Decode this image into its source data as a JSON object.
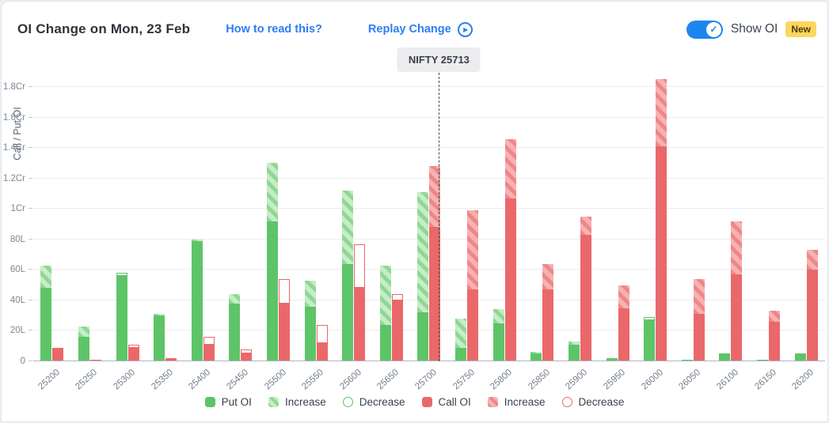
{
  "header": {
    "title": "OI Change on Mon, 23 Feb",
    "how_to_read": "How to read this?",
    "replay_label": "Replay Change",
    "show_oi_label": "Show OI",
    "new_badge": "New",
    "show_oi_toggle_on": true
  },
  "colors": {
    "put_solid": "#5ec468",
    "put_light": "#c6ecc8",
    "call_solid": "#ea686a",
    "call_light": "#f6b2b3",
    "link_blue": "#2d7df6",
    "toggle_blue": "#1d86ee",
    "badge_yellow": "#fbd762"
  },
  "chart_data": {
    "type": "bar",
    "title": "OI Change on Mon, 23 Feb",
    "ylabel": "Call / Put OI",
    "xlabel": "",
    "units": "values in lakhs (L); 1Cr = 100L",
    "grid": true,
    "ymax_lakh": 188,
    "ytick_values": [
      0,
      20,
      40,
      60,
      80,
      100,
      120,
      140,
      160,
      180
    ],
    "ytick_labels": [
      "0",
      "20L",
      "40L",
      "60L",
      "80L",
      "1Cr",
      "1.2Cr",
      "1.4Cr",
      "1.6Cr",
      "1.8Cr"
    ],
    "categories": [
      25200,
      25250,
      25300,
      25350,
      25400,
      25450,
      25500,
      25550,
      25600,
      25650,
      25700,
      25750,
      25800,
      25850,
      25900,
      25950,
      26000,
      26050,
      26100,
      26150,
      26200
    ],
    "spot": {
      "label": "NIFTY 25713",
      "index_name": "NIFTY",
      "value": 25713
    },
    "series": [
      {
        "name": "Put OI",
        "color": "#5ec468",
        "segments": [
          {
            "solid": 48,
            "increase": 15,
            "decrease": 0
          },
          {
            "solid": 16,
            "increase": 7,
            "decrease": 0
          },
          {
            "solid": 56,
            "increase": 0,
            "decrease": 2
          },
          {
            "solid": 30,
            "increase": 1,
            "decrease": 0
          },
          {
            "solid": 79,
            "increase": 1,
            "decrease": 0
          },
          {
            "solid": 38,
            "increase": 6,
            "decrease": 0
          },
          {
            "solid": 92,
            "increase": 38,
            "decrease": 0
          },
          {
            "solid": 36,
            "increase": 17,
            "decrease": 0
          },
          {
            "solid": 64,
            "increase": 48,
            "decrease": 0
          },
          {
            "solid": 24,
            "increase": 39,
            "decrease": 0
          },
          {
            "solid": 32,
            "increase": 79,
            "decrease": 0
          },
          {
            "solid": 9,
            "increase": 19,
            "decrease": 0
          },
          {
            "solid": 25,
            "increase": 9,
            "decrease": 0
          },
          {
            "solid": 5,
            "increase": 1,
            "decrease": 0
          },
          {
            "solid": 11,
            "increase": 2,
            "decrease": 0
          },
          {
            "solid": 2,
            "increase": 0,
            "decrease": 0
          },
          {
            "solid": 27,
            "increase": 0,
            "decrease": 2
          },
          {
            "solid": 1,
            "increase": 0,
            "decrease": 0
          },
          {
            "solid": 5,
            "increase": 0,
            "decrease": 0
          },
          {
            "solid": 1,
            "increase": 0,
            "decrease": 0
          },
          {
            "solid": 5,
            "increase": 0,
            "decrease": 0
          }
        ]
      },
      {
        "name": "Call OI",
        "color": "#ea686a",
        "segments": [
          {
            "solid": 8,
            "increase": 0,
            "decrease": 1
          },
          {
            "solid": 1,
            "increase": 0,
            "decrease": 0
          },
          {
            "solid": 9,
            "increase": 0,
            "decrease": 2
          },
          {
            "solid": 2,
            "increase": 0,
            "decrease": 0
          },
          {
            "solid": 11,
            "increase": 0,
            "decrease": 5
          },
          {
            "solid": 5,
            "increase": 0,
            "decrease": 3
          },
          {
            "solid": 38,
            "increase": 0,
            "decrease": 16
          },
          {
            "solid": 12,
            "increase": 0,
            "decrease": 12
          },
          {
            "solid": 48,
            "increase": 0,
            "decrease": 29
          },
          {
            "solid": 40,
            "increase": 0,
            "decrease": 4
          },
          {
            "solid": 88,
            "increase": 40,
            "decrease": 0
          },
          {
            "solid": 47,
            "increase": 52,
            "decrease": 0
          },
          {
            "solid": 107,
            "increase": 39,
            "decrease": 0
          },
          {
            "solid": 47,
            "increase": 17,
            "decrease": 0
          },
          {
            "solid": 83,
            "increase": 12,
            "decrease": 0
          },
          {
            "solid": 35,
            "increase": 15,
            "decrease": 0
          },
          {
            "solid": 141,
            "increase": 44,
            "decrease": 0
          },
          {
            "solid": 31,
            "increase": 23,
            "decrease": 0
          },
          {
            "solid": 57,
            "increase": 35,
            "decrease": 0
          },
          {
            "solid": 26,
            "increase": 7,
            "decrease": 0
          },
          {
            "solid": 60,
            "increase": 13,
            "decrease": 0
          }
        ]
      }
    ],
    "legend_position": "bottom"
  },
  "legend": [
    {
      "label": "Put OI",
      "swatch": "put-solid"
    },
    {
      "label": "Increase",
      "swatch": "put-increase"
    },
    {
      "label": "Decrease",
      "swatch": "put-decrease"
    },
    {
      "label": "Call OI",
      "swatch": "call-solid"
    },
    {
      "label": "Increase",
      "swatch": "call-increase"
    },
    {
      "label": "Decrease",
      "swatch": "call-decrease"
    }
  ]
}
